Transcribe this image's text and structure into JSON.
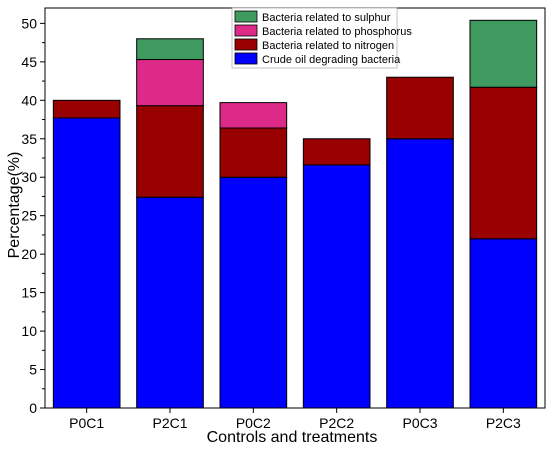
{
  "chart_data": {
    "type": "bar",
    "stacked": true,
    "categories": [
      "P0C1",
      "P2C1",
      "P0C2",
      "P2C2",
      "P0C3",
      "P2C3"
    ],
    "series": [
      {
        "name": "Crude oil degrading bacteria",
        "color": "#0000ff",
        "values": [
          37.7,
          27.4,
          30.0,
          31.6,
          35.0,
          22.0
        ]
      },
      {
        "name": "Bacteria related to nitrogen",
        "color": "#990000",
        "values": [
          2.3,
          11.9,
          6.4,
          3.4,
          8.0,
          19.7
        ]
      },
      {
        "name": "Bacteria related to phosphorus",
        "color": "#dd2a88",
        "values": [
          0,
          6.0,
          3.3,
          0,
          0,
          0
        ]
      },
      {
        "name": "Bacteria related to sulphur",
        "color": "#3f9a5f",
        "values": [
          0,
          2.7,
          0,
          0,
          0,
          8.7
        ]
      }
    ],
    "xlabel": "Controls and treatments",
    "ylabel": "Percentage(%)",
    "ylim": [
      0,
      52
    ],
    "yticks": [
      0,
      5,
      10,
      15,
      20,
      25,
      30,
      35,
      40,
      45,
      50
    ],
    "legend": {
      "position": "top-center",
      "order": [
        "Bacteria related to sulphur",
        "Bacteria related to phosphorus",
        "Bacteria related to nitrogen",
        "Crude oil degrading bacteria"
      ]
    },
    "grid": false
  }
}
